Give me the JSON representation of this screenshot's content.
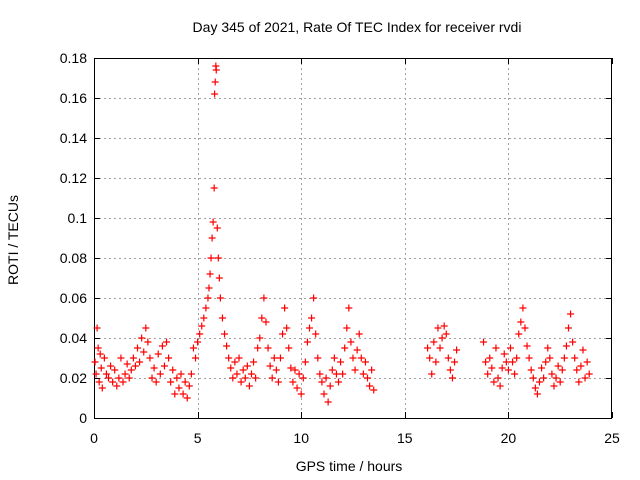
{
  "chart_data": {
    "type": "scatter",
    "title": "Day 345 of 2021, Rate Of TEC Index for receiver rvdi",
    "xlabel": "GPS time / hours",
    "ylabel": "ROTI / TECUs",
    "xlim": [
      0,
      25
    ],
    "ylim": [
      0,
      0.18
    ],
    "xticks": [
      0,
      5,
      10,
      15,
      20,
      25
    ],
    "xtick_labels": [
      "0",
      "5",
      "10",
      "15",
      "20",
      "25"
    ],
    "yticks": [
      0,
      0.02,
      0.04,
      0.06,
      0.08,
      0.1,
      0.12,
      0.14,
      0.16,
      0.18
    ],
    "ytick_labels": [
      "0",
      "0.02",
      "0.04",
      "0.06",
      "0.08",
      "0.1",
      "0.12",
      "0.14",
      "0.16",
      "0.18"
    ],
    "grid": true,
    "marker": "+",
    "color": "#ff0000",
    "series": [
      {
        "name": "ROTI",
        "points": [
          [
            0.05,
            0.028
          ],
          [
            0.1,
            0.022
          ],
          [
            0.15,
            0.045
          ],
          [
            0.2,
            0.035
          ],
          [
            0.25,
            0.018
          ],
          [
            0.3,
            0.032
          ],
          [
            0.35,
            0.025
          ],
          [
            0.4,
            0.015
          ],
          [
            0.5,
            0.03
          ],
          [
            0.6,
            0.022
          ],
          [
            0.7,
            0.02
          ],
          [
            0.8,
            0.026
          ],
          [
            0.9,
            0.018
          ],
          [
            1.0,
            0.024
          ],
          [
            1.1,
            0.016
          ],
          [
            1.2,
            0.02
          ],
          [
            1.3,
            0.03
          ],
          [
            1.4,
            0.018
          ],
          [
            1.5,
            0.022
          ],
          [
            1.6,
            0.027
          ],
          [
            1.7,
            0.02
          ],
          [
            1.8,
            0.024
          ],
          [
            1.9,
            0.03
          ],
          [
            2.0,
            0.026
          ],
          [
            2.1,
            0.035
          ],
          [
            2.2,
            0.028
          ],
          [
            2.3,
            0.04
          ],
          [
            2.4,
            0.033
          ],
          [
            2.5,
            0.045
          ],
          [
            2.6,
            0.038
          ],
          [
            2.7,
            0.03
          ],
          [
            2.8,
            0.02
          ],
          [
            2.9,
            0.025
          ],
          [
            3.0,
            0.018
          ],
          [
            3.1,
            0.032
          ],
          [
            3.2,
            0.022
          ],
          [
            3.3,
            0.036
          ],
          [
            3.4,
            0.026
          ],
          [
            3.5,
            0.038
          ],
          [
            3.6,
            0.03
          ],
          [
            3.7,
            0.018
          ],
          [
            3.8,
            0.024
          ],
          [
            3.9,
            0.012
          ],
          [
            4.0,
            0.02
          ],
          [
            4.1,
            0.015
          ],
          [
            4.2,
            0.022
          ],
          [
            4.3,
            0.012
          ],
          [
            4.4,
            0.018
          ],
          [
            4.5,
            0.01
          ],
          [
            4.6,
            0.016
          ],
          [
            4.7,
            0.022
          ],
          [
            4.8,
            0.035
          ],
          [
            4.9,
            0.03
          ],
          [
            5.0,
            0.038
          ],
          [
            5.1,
            0.042
          ],
          [
            5.2,
            0.046
          ],
          [
            5.3,
            0.05
          ],
          [
            5.4,
            0.055
          ],
          [
            5.5,
            0.06
          ],
          [
            5.55,
            0.065
          ],
          [
            5.6,
            0.072
          ],
          [
            5.65,
            0.08
          ],
          [
            5.7,
            0.09
          ],
          [
            5.75,
            0.098
          ],
          [
            5.8,
            0.115
          ],
          [
            5.82,
            0.162
          ],
          [
            5.85,
            0.168
          ],
          [
            5.88,
            0.176
          ],
          [
            5.9,
            0.174
          ],
          [
            5.95,
            0.095
          ],
          [
            6.0,
            0.08
          ],
          [
            6.05,
            0.07
          ],
          [
            6.1,
            0.06
          ],
          [
            6.2,
            0.05
          ],
          [
            6.3,
            0.042
          ],
          [
            6.4,
            0.036
          ],
          [
            6.5,
            0.03
          ],
          [
            6.6,
            0.025
          ],
          [
            6.7,
            0.02
          ],
          [
            6.8,
            0.028
          ],
          [
            6.9,
            0.022
          ],
          [
            7.0,
            0.03
          ],
          [
            7.1,
            0.018
          ],
          [
            7.2,
            0.024
          ],
          [
            7.3,
            0.02
          ],
          [
            7.4,
            0.026
          ],
          [
            7.5,
            0.016
          ],
          [
            7.6,
            0.022
          ],
          [
            7.7,
            0.028
          ],
          [
            7.8,
            0.02
          ],
          [
            7.9,
            0.035
          ],
          [
            8.0,
            0.04
          ],
          [
            8.1,
            0.05
          ],
          [
            8.2,
            0.06
          ],
          [
            8.3,
            0.048
          ],
          [
            8.4,
            0.035
          ],
          [
            8.5,
            0.026
          ],
          [
            8.6,
            0.02
          ],
          [
            8.7,
            0.03
          ],
          [
            8.8,
            0.024
          ],
          [
            8.9,
            0.018
          ],
          [
            9.0,
            0.03
          ],
          [
            9.1,
            0.042
          ],
          [
            9.2,
            0.055
          ],
          [
            9.3,
            0.045
          ],
          [
            9.4,
            0.035
          ],
          [
            9.5,
            0.025
          ],
          [
            9.6,
            0.018
          ],
          [
            9.7,
            0.024
          ],
          [
            9.8,
            0.015
          ],
          [
            9.9,
            0.022
          ],
          [
            10.0,
            0.012
          ],
          [
            10.1,
            0.02
          ],
          [
            10.2,
            0.028
          ],
          [
            10.3,
            0.038
          ],
          [
            10.4,
            0.045
          ],
          [
            10.5,
            0.05
          ],
          [
            10.6,
            0.06
          ],
          [
            10.7,
            0.042
          ],
          [
            10.8,
            0.03
          ],
          [
            10.9,
            0.022
          ],
          [
            11.0,
            0.018
          ],
          [
            11.1,
            0.012
          ],
          [
            11.2,
            0.02
          ],
          [
            11.3,
            0.008
          ],
          [
            11.4,
            0.016
          ],
          [
            11.5,
            0.024
          ],
          [
            11.6,
            0.03
          ],
          [
            11.7,
            0.022
          ],
          [
            11.8,
            0.018
          ],
          [
            11.9,
            0.028
          ],
          [
            12.0,
            0.022
          ],
          [
            12.1,
            0.035
          ],
          [
            12.2,
            0.045
          ],
          [
            12.3,
            0.055
          ],
          [
            12.4,
            0.038
          ],
          [
            12.5,
            0.03
          ],
          [
            12.6,
            0.024
          ],
          [
            12.7,
            0.034
          ],
          [
            12.8,
            0.042
          ],
          [
            12.9,
            0.03
          ],
          [
            13.0,
            0.022
          ],
          [
            13.1,
            0.028
          ],
          [
            13.2,
            0.02
          ],
          [
            13.3,
            0.016
          ],
          [
            13.4,
            0.024
          ],
          [
            13.5,
            0.014
          ],
          [
            16.1,
            0.035
          ],
          [
            16.2,
            0.03
          ],
          [
            16.3,
            0.022
          ],
          [
            16.4,
            0.038
          ],
          [
            16.5,
            0.028
          ],
          [
            16.6,
            0.045
          ],
          [
            16.7,
            0.035
          ],
          [
            16.8,
            0.04
          ],
          [
            16.9,
            0.046
          ],
          [
            17.0,
            0.042
          ],
          [
            17.1,
            0.03
          ],
          [
            17.2,
            0.024
          ],
          [
            17.3,
            0.02
          ],
          [
            17.4,
            0.028
          ],
          [
            17.5,
            0.034
          ],
          [
            18.8,
            0.038
          ],
          [
            18.9,
            0.028
          ],
          [
            19.0,
            0.022
          ],
          [
            19.1,
            0.03
          ],
          [
            19.2,
            0.025
          ],
          [
            19.3,
            0.018
          ],
          [
            19.4,
            0.035
          ],
          [
            19.5,
            0.02
          ],
          [
            19.6,
            0.016
          ],
          [
            19.7,
            0.025
          ],
          [
            19.8,
            0.032
          ],
          [
            19.9,
            0.028
          ],
          [
            20.0,
            0.024
          ],
          [
            20.1,
            0.035
          ],
          [
            20.2,
            0.028
          ],
          [
            20.3,
            0.022
          ],
          [
            20.4,
            0.03
          ],
          [
            20.5,
            0.042
          ],
          [
            20.6,
            0.048
          ],
          [
            20.7,
            0.055
          ],
          [
            20.8,
            0.045
          ],
          [
            20.9,
            0.036
          ],
          [
            21.0,
            0.03
          ],
          [
            21.1,
            0.024
          ],
          [
            21.2,
            0.02
          ],
          [
            21.3,
            0.015
          ],
          [
            21.4,
            0.012
          ],
          [
            21.5,
            0.018
          ],
          [
            21.6,
            0.025
          ],
          [
            21.7,
            0.02
          ],
          [
            21.8,
            0.028
          ],
          [
            21.9,
            0.035
          ],
          [
            22.0,
            0.03
          ],
          [
            22.1,
            0.022
          ],
          [
            22.2,
            0.016
          ],
          [
            22.3,
            0.02
          ],
          [
            22.4,
            0.026
          ],
          [
            22.5,
            0.018
          ],
          [
            22.6,
            0.024
          ],
          [
            22.7,
            0.03
          ],
          [
            22.8,
            0.036
          ],
          [
            22.9,
            0.045
          ],
          [
            23.0,
            0.052
          ],
          [
            23.1,
            0.038
          ],
          [
            23.2,
            0.03
          ],
          [
            23.3,
            0.024
          ],
          [
            23.4,
            0.018
          ],
          [
            23.5,
            0.026
          ],
          [
            23.6,
            0.034
          ],
          [
            23.7,
            0.02
          ],
          [
            23.8,
            0.028
          ],
          [
            23.9,
            0.022
          ]
        ]
      }
    ]
  }
}
